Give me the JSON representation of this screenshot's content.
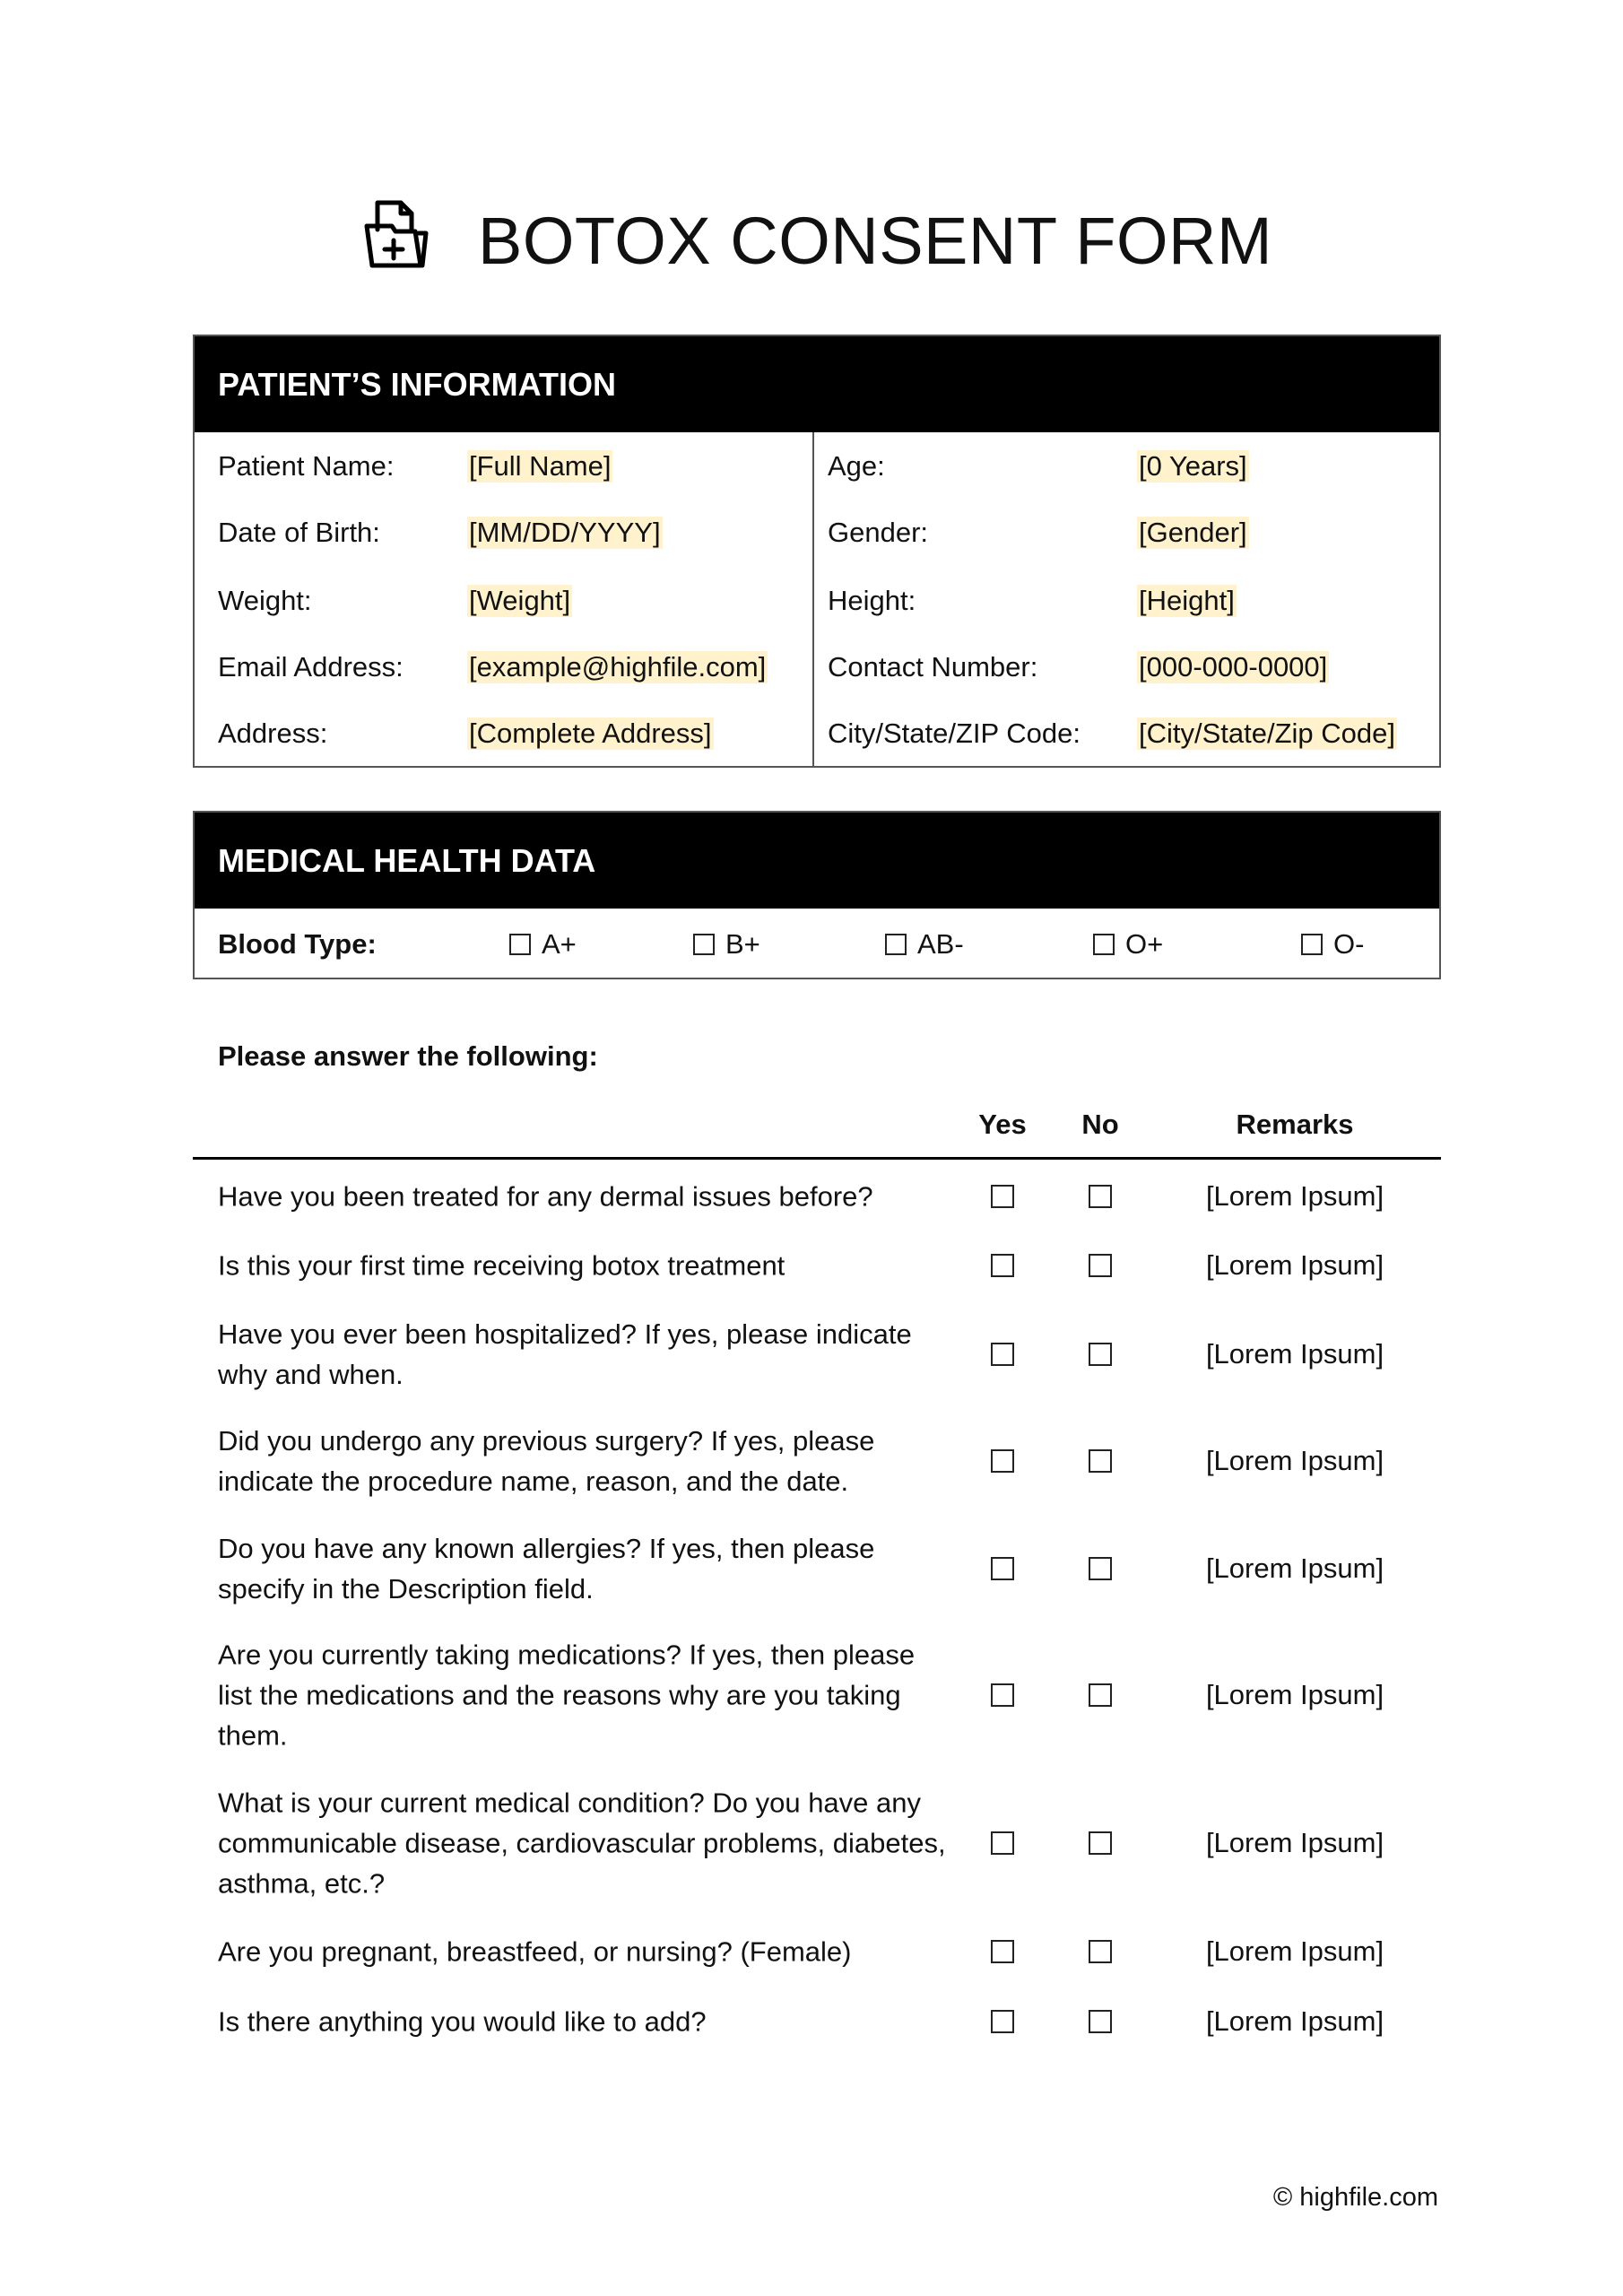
{
  "title": "BOTOX CONSENT FORM",
  "title_icon": "medical-folder-plus-icon",
  "highlight_color": "#fff2cc",
  "patient_info": {
    "header": "PATIENT’S INFORMATION",
    "left": [
      {
        "label": "Patient Name:",
        "value": "[Full Name]"
      },
      {
        "label": "Date of Birth:",
        "value": "[MM/DD/YYYY]"
      },
      {
        "label": "Weight:",
        "value": "[Weight]"
      },
      {
        "label": "Email Address:",
        "value": "[example@highfile.com]"
      },
      {
        "label": "Address:",
        "value": "[Complete Address]"
      }
    ],
    "right": [
      {
        "label": "Age:",
        "value": "[0 Years]"
      },
      {
        "label": "Gender:",
        "value": "[Gender]"
      },
      {
        "label": "Height:",
        "value": "[Height]"
      },
      {
        "label": "Contact Number:",
        "value": "[000-000-0000]"
      },
      {
        "label": "City/State/ZIP Code:",
        "value": "[City/State/Zip Code]"
      }
    ]
  },
  "medical": {
    "header": "MEDICAL HEALTH DATA",
    "blood_type_label": "Blood Type:",
    "blood_types": [
      "A+",
      "B+",
      "AB-",
      "O+",
      "O-"
    ]
  },
  "questions": {
    "intro": "Please answer the following:",
    "col_yes": "Yes",
    "col_no": "No",
    "col_remarks": "Remarks",
    "items": [
      {
        "text": "Have you been treated for any dermal issues before?",
        "remarks": "[Lorem Ipsum]"
      },
      {
        "text": "Is this your first time receiving botox treatment",
        "remarks": "[Lorem Ipsum]"
      },
      {
        "text": "Have you ever been hospitalized? If yes, please indicate why and when.",
        "remarks": "[Lorem Ipsum]"
      },
      {
        "text": "Did you undergo any previous surgery? If yes, please indicate the procedure name, reason, and the date.",
        "remarks": "[Lorem Ipsum]"
      },
      {
        "text": "Do you have any known allergies? If yes, then please specify in the Description field.",
        "remarks": "[Lorem Ipsum]"
      },
      {
        "text": "Are you currently taking medications? If yes, then please list the medications and the reasons why are you taking them.",
        "remarks": "[Lorem Ipsum]"
      },
      {
        "text": "What is your current medical condition? Do you have any communicable disease, cardiovascular problems, diabetes, asthma, etc.?",
        "remarks": "[Lorem Ipsum]"
      },
      {
        "text": "Are you pregnant, breastfeed, or nursing? (Female)",
        "remarks": "[Lorem Ipsum]"
      },
      {
        "text": "Is there anything you would like to add?",
        "remarks": "[Lorem Ipsum]"
      }
    ]
  },
  "footer": "© highfile.com"
}
